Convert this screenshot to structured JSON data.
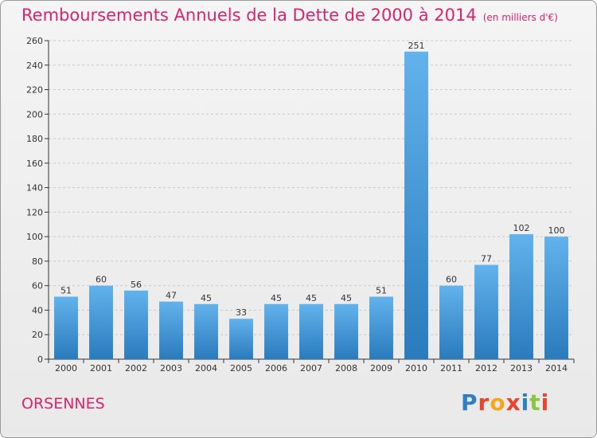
{
  "page": {
    "title": "Remboursements Annuels de la Dette de 2000 à 2014",
    "subtitle": "(en milliers d'€)",
    "place": "ORSENNES",
    "logo": {
      "text": "Proxiti",
      "letters": [
        {
          "ch": "P",
          "color": "#2e7fc4"
        },
        {
          "ch": "r",
          "color": "#e8452c"
        },
        {
          "ch": "o",
          "color": "#f2a81d"
        },
        {
          "ch": "x",
          "color": "#e8452c"
        },
        {
          "ch": "i",
          "color": "#2e7fc4"
        },
        {
          "ch": "t",
          "color": "#8cc63f"
        },
        {
          "ch": "i",
          "color": "#e8452c"
        }
      ]
    }
  },
  "colors": {
    "title": "#d6246e",
    "bar_top": "#62b2ec",
    "bar_bottom": "#2a7bbd",
    "grid": "#c8c8c8",
    "axis": "#333333",
    "text": "#333333"
  },
  "chart_data": {
    "type": "bar",
    "title": "Remboursements Annuels de la Dette de 2000 à 2014",
    "subtitle": "(en milliers d'€)",
    "categories": [
      "2000",
      "2001",
      "2002",
      "2003",
      "2004",
      "2005",
      "2006",
      "2007",
      "2008",
      "2009",
      "2010",
      "2011",
      "2012",
      "2013",
      "2014"
    ],
    "values": [
      51,
      60,
      56,
      47,
      45,
      33,
      45,
      45,
      45,
      51,
      251,
      60,
      77,
      102,
      100
    ],
    "ylim": [
      0,
      260
    ],
    "yticks": [
      0,
      20,
      40,
      60,
      80,
      100,
      120,
      140,
      160,
      180,
      200,
      220,
      240,
      260
    ],
    "grid": true,
    "data_labels": true
  }
}
